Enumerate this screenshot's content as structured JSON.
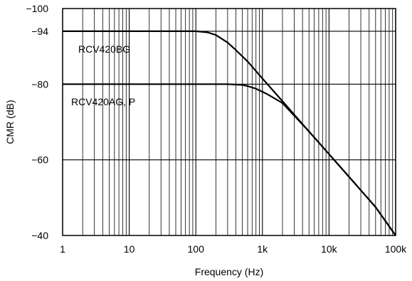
{
  "chart_data": {
    "type": "line",
    "title": "",
    "xlabel": "Frequency (Hz)",
    "ylabel": "CMR (dB)",
    "xscale": "log",
    "xlim": [
      1,
      100000
    ],
    "ylim": [
      -40,
      -100
    ],
    "x_ticks": [
      {
        "value": 1,
        "label": "1"
      },
      {
        "value": 10,
        "label": "10"
      },
      {
        "value": 100,
        "label": "100"
      },
      {
        "value": 1000,
        "label": "1k"
      },
      {
        "value": 10000,
        "label": "10k"
      },
      {
        "value": 100000,
        "label": "100k"
      }
    ],
    "y_ticks": [
      {
        "value": -100,
        "label": "−100"
      },
      {
        "value": -94,
        "label": "−94"
      },
      {
        "value": -80,
        "label": "−80"
      },
      {
        "value": -60,
        "label": "−60"
      },
      {
        "value": -40,
        "label": "−40"
      }
    ],
    "grid": true,
    "series": [
      {
        "name": "RCV420BG",
        "x": [
          1,
          10,
          100,
          150,
          200,
          300,
          400,
          600,
          1000,
          2000,
          5000,
          10000,
          20000,
          50000,
          100000
        ],
        "y": [
          -94,
          -94,
          -94,
          -93.7,
          -93,
          -91,
          -89,
          -86,
          -81.5,
          -75.5,
          -67.5,
          -61.5,
          -55.5,
          -47.5,
          -40
        ]
      },
      {
        "name": "RCV420AG, P",
        "x": [
          1,
          10,
          100,
          300,
          500,
          600,
          800,
          1000,
          1200,
          2000,
          5000,
          10000,
          20000,
          50000,
          100000
        ],
        "y": [
          -80,
          -80,
          -80,
          -80,
          -79.8,
          -79.5,
          -78.8,
          -78,
          -77.3,
          -75,
          -67.5,
          -61.5,
          -55.5,
          -47.5,
          -40
        ]
      }
    ],
    "colors": {
      "line": "#000000",
      "grid": "#000000",
      "background": "#ffffff"
    }
  }
}
